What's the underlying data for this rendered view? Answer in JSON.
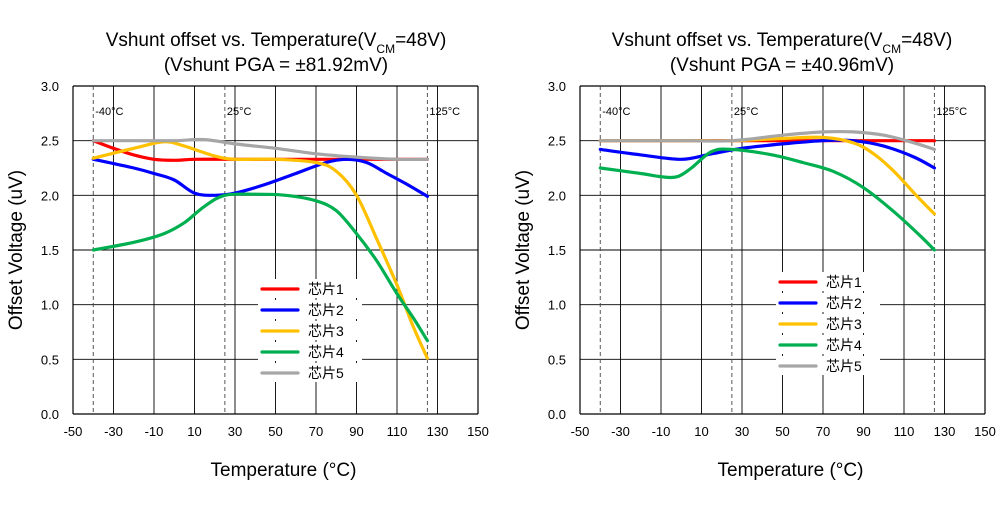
{
  "chart_data": [
    {
      "type": "line",
      "title": "Vshunt offset vs. Temperature(V",
      "title_sub": "CM",
      "title_end": "=48V)",
      "subtitle": "(Vshunt PGA = ±81.92mV)",
      "xlabel": "Temperature (°C)",
      "ylabel": "Offset Voltage (uV)",
      "xlim": [
        -50,
        150
      ],
      "ylim": [
        0,
        3
      ],
      "xticks": [
        "-50",
        "-30",
        "-10",
        "10",
        "30",
        "50",
        "70",
        "90",
        "110",
        "130",
        "150"
      ],
      "yticks": [
        "0.0",
        "0.5",
        "1.0",
        "1.5",
        "2.0",
        "2.5",
        "3.0"
      ],
      "markers": [
        {
          "x": -40,
          "label": "-40°C"
        },
        {
          "x": 25,
          "label": "25°C"
        },
        {
          "x": 125,
          "label": "125°C"
        }
      ],
      "legend_position": "center",
      "series": [
        {
          "name": "芯片1",
          "color": "#ff0000",
          "points": [
            [
              -40,
              2.5
            ],
            [
              -30,
              2.43
            ],
            [
              -20,
              2.37
            ],
            [
              -10,
              2.33
            ],
            [
              0,
              2.32
            ],
            [
              10,
              2.33
            ],
            [
              25,
              2.33
            ],
            [
              50,
              2.33
            ],
            [
              75,
              2.33
            ],
            [
              100,
              2.33
            ],
            [
              125,
              2.33
            ]
          ]
        },
        {
          "name": "芯片2",
          "color": "#0000ff",
          "points": [
            [
              -40,
              2.33
            ],
            [
              -20,
              2.25
            ],
            [
              -10,
              2.2
            ],
            [
              0,
              2.14
            ],
            [
              10,
              2.02
            ],
            [
              20,
              2.0
            ],
            [
              30,
              2.02
            ],
            [
              45,
              2.1
            ],
            [
              60,
              2.2
            ],
            [
              75,
              2.3
            ],
            [
              85,
              2.33
            ],
            [
              95,
              2.3
            ],
            [
              105,
              2.2
            ],
            [
              115,
              2.1
            ],
            [
              125,
              1.99
            ]
          ]
        },
        {
          "name": "芯片3",
          "color": "#ffc000",
          "points": [
            [
              -40,
              2.34
            ],
            [
              -20,
              2.43
            ],
            [
              -5,
              2.49
            ],
            [
              5,
              2.45
            ],
            [
              20,
              2.36
            ],
            [
              30,
              2.33
            ],
            [
              50,
              2.33
            ],
            [
              70,
              2.3
            ],
            [
              80,
              2.22
            ],
            [
              90,
              2.0
            ],
            [
              100,
              1.6
            ],
            [
              110,
              1.18
            ],
            [
              118,
              0.8
            ],
            [
              125,
              0.51
            ]
          ]
        },
        {
          "name": "芯片4",
          "color": "#00b050",
          "points": [
            [
              -40,
              1.5
            ],
            [
              -20,
              1.57
            ],
            [
              -5,
              1.65
            ],
            [
              5,
              1.75
            ],
            [
              15,
              1.9
            ],
            [
              25,
              2.0
            ],
            [
              40,
              2.01
            ],
            [
              55,
              2.0
            ],
            [
              70,
              1.95
            ],
            [
              80,
              1.86
            ],
            [
              90,
              1.65
            ],
            [
              100,
              1.4
            ],
            [
              110,
              1.1
            ],
            [
              118,
              0.88
            ],
            [
              125,
              0.67
            ]
          ]
        },
        {
          "name": "芯片5",
          "color": "#a6a6a6",
          "points": [
            [
              -40,
              2.5
            ],
            [
              -20,
              2.5
            ],
            [
              0,
              2.5
            ],
            [
              15,
              2.51
            ],
            [
              30,
              2.47
            ],
            [
              50,
              2.43
            ],
            [
              70,
              2.38
            ],
            [
              90,
              2.35
            ],
            [
              110,
              2.33
            ],
            [
              125,
              2.33
            ]
          ]
        }
      ]
    },
    {
      "type": "line",
      "title": "Vshunt offset vs. Temperature(V",
      "title_sub": "CM",
      "title_end": "=48V)",
      "subtitle": "(Vshunt PGA = ±40.96mV)",
      "xlabel": "Temperature (°C)",
      "ylabel": "Offset Voltage (uV)",
      "xlim": [
        -50,
        150
      ],
      "ylim": [
        0,
        3
      ],
      "xticks": [
        "-50",
        "-30",
        "-10",
        "10",
        "30",
        "50",
        "70",
        "90",
        "110",
        "130",
        "150"
      ],
      "yticks": [
        "0.0",
        "0.5",
        "1.0",
        "1.5",
        "2.0",
        "2.5",
        "3.0"
      ],
      "markers": [
        {
          "x": -40,
          "label": "-40°C"
        },
        {
          "x": 25,
          "label": "25°C"
        },
        {
          "x": 125,
          "label": "125°C"
        }
      ],
      "legend_position": "center",
      "series": [
        {
          "name": "芯片1",
          "color": "#ff0000",
          "points": [
            [
              -40,
              2.5
            ],
            [
              0,
              2.5
            ],
            [
              25,
              2.5
            ],
            [
              50,
              2.5
            ],
            [
              75,
              2.5
            ],
            [
              100,
              2.5
            ],
            [
              125,
              2.5
            ]
          ]
        },
        {
          "name": "芯片2",
          "color": "#0000ff",
          "points": [
            [
              -40,
              2.42
            ],
            [
              -20,
              2.37
            ],
            [
              0,
              2.33
            ],
            [
              15,
              2.38
            ],
            [
              30,
              2.43
            ],
            [
              50,
              2.47
            ],
            [
              70,
              2.5
            ],
            [
              85,
              2.5
            ],
            [
              100,
              2.45
            ],
            [
              115,
              2.35
            ],
            [
              125,
              2.25
            ]
          ]
        },
        {
          "name": "芯片3",
          "color": "#ffc000",
          "points": [
            [
              -40,
              2.5
            ],
            [
              0,
              2.5
            ],
            [
              25,
              2.5
            ],
            [
              50,
              2.52
            ],
            [
              70,
              2.53
            ],
            [
              85,
              2.48
            ],
            [
              95,
              2.38
            ],
            [
              105,
              2.22
            ],
            [
              115,
              2.02
            ],
            [
              125,
              1.83
            ]
          ]
        },
        {
          "name": "芯片4",
          "color": "#00b050",
          "points": [
            [
              -40,
              2.25
            ],
            [
              -20,
              2.2
            ],
            [
              -10,
              2.17
            ],
            [
              -2,
              2.17
            ],
            [
              5,
              2.25
            ],
            [
              15,
              2.4
            ],
            [
              25,
              2.42
            ],
            [
              45,
              2.37
            ],
            [
              60,
              2.3
            ],
            [
              75,
              2.22
            ],
            [
              90,
              2.07
            ],
            [
              105,
              1.85
            ],
            [
              118,
              1.63
            ],
            [
              125,
              1.5
            ]
          ]
        },
        {
          "name": "芯片5",
          "color": "#a6a6a6",
          "points": [
            [
              -40,
              2.5
            ],
            [
              0,
              2.5
            ],
            [
              25,
              2.5
            ],
            [
              50,
              2.55
            ],
            [
              70,
              2.58
            ],
            [
              85,
              2.58
            ],
            [
              100,
              2.55
            ],
            [
              115,
              2.48
            ],
            [
              125,
              2.42
            ]
          ]
        }
      ]
    }
  ]
}
